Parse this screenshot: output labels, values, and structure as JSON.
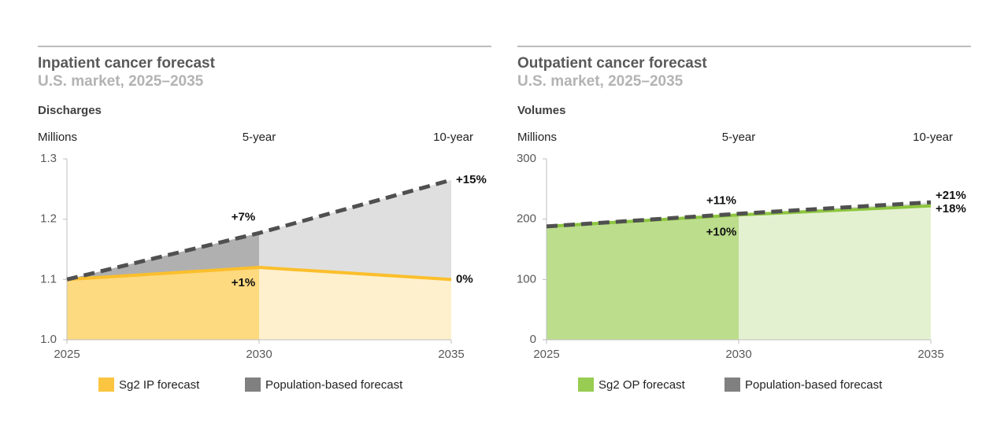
{
  "chart_data": [
    {
      "type": "line",
      "title": "Inpatient cancer forecast",
      "subtitle": "U.S. market, 2025–2035",
      "measure": "Discharges",
      "unit": "Millions",
      "horizon_labels": [
        "5-year",
        "10-year"
      ],
      "x": [
        2025,
        2030,
        2035
      ],
      "xlim": [
        2025,
        2035
      ],
      "xticks": [
        2025,
        2030,
        2035
      ],
      "ylim": [
        1,
        1.3
      ],
      "yticks": [
        {
          "value": 1,
          "label": "1.0"
        },
        1.1,
        1.2,
        1.3
      ],
      "series": [
        {
          "name": "Sg2 IP forecast",
          "color": "#fbbf2c",
          "values": [
            1.1,
            1.12,
            1.1
          ],
          "change_labels": [
            "+1%",
            "0%"
          ]
        },
        {
          "name": "Population-based forecast",
          "color": "#505050",
          "values": [
            1.1,
            1.177,
            1.265
          ],
          "dashed": true,
          "change_labels": [
            "+7%",
            "+15%"
          ]
        }
      ]
    },
    {
      "type": "line",
      "title": "Outpatient cancer forecast",
      "subtitle": "U.S. market, 2025–2035",
      "measure": "Volumes",
      "unit": "Millions",
      "horizon_labels": [
        "5-year",
        "10-year"
      ],
      "x": [
        2025,
        2030,
        2035
      ],
      "xlim": [
        2025,
        2035
      ],
      "xticks": [
        2025,
        2030,
        2035
      ],
      "ylim": [
        0,
        300
      ],
      "yticks": [
        0,
        100,
        200,
        300
      ],
      "series": [
        {
          "name": "Sg2 OP forecast",
          "color": "#8dc63f",
          "values": [
            188,
            207,
            222
          ],
          "change_labels": [
            "+10%",
            "+18%"
          ]
        },
        {
          "name": "Population-based forecast",
          "color": "#505050",
          "values": [
            188,
            209,
            228
          ],
          "dashed": true,
          "change_labels": [
            "+11%",
            "+21%"
          ]
        }
      ]
    }
  ]
}
